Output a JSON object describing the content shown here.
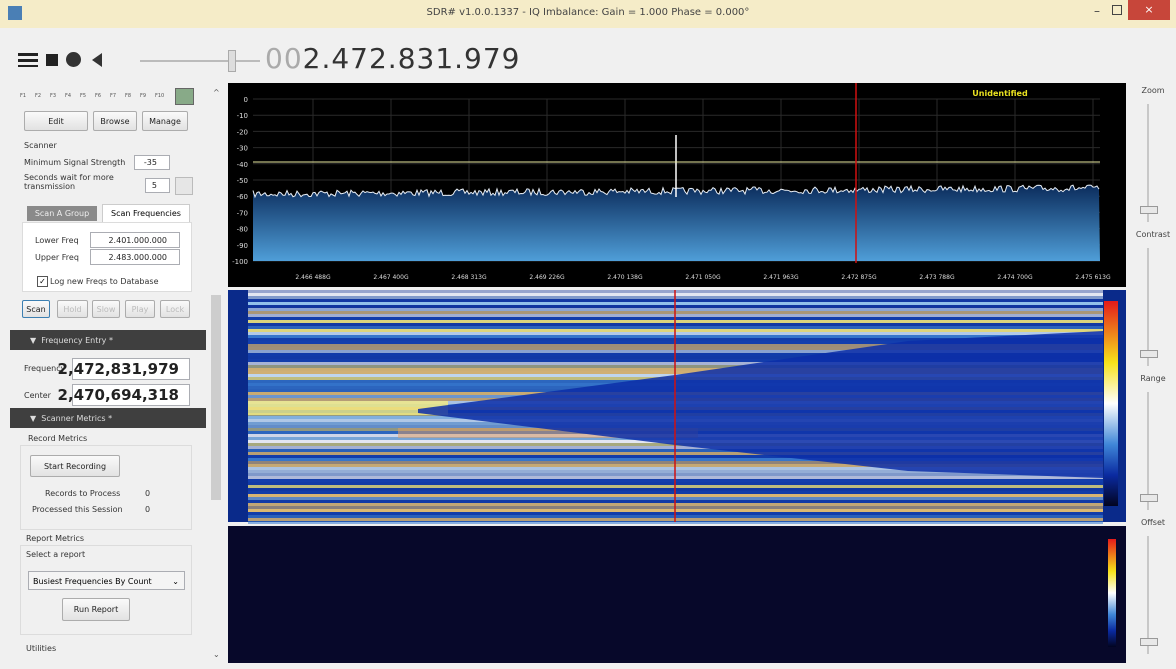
{
  "window": {
    "title": "SDR# v1.0.0.1337 - IQ Imbalance: Gain = 1.000 Phase = 0.000°"
  },
  "toolbar": {
    "frequency_prefix": "00",
    "frequency": "2.472.831.979"
  },
  "sidebar": {
    "favorites": [
      "F1",
      "F2",
      "F3",
      "F4",
      "F5",
      "F6",
      "F7",
      "F8",
      "F9",
      "F10"
    ],
    "buttons": [
      "Edit",
      "Browse",
      "Manage"
    ],
    "scanner": {
      "heading": "Scanner",
      "min_signal_label": "Minimum Signal Strength",
      "min_signal_value": "-35",
      "wait_label": "Seconds wait for more transmission",
      "wait_value": "5",
      "tabs": [
        "Scan A Group",
        "Scan Frequencies"
      ],
      "lower_label": "Lower Freq",
      "lower_value": "2.401.000.000",
      "upper_label": "Upper Freq",
      "upper_value": "2.483.000.000",
      "log_label": "Log new Freqs to Database",
      "controls": [
        "Scan",
        "Hold",
        "Slow",
        "Play",
        "Lock"
      ]
    },
    "frequency_entry": {
      "header": "Frequency Entry *",
      "frequency_label": "Frequency",
      "frequency_value": "2,472,831,979",
      "center_label": "Center",
      "center_value": "2,470,694,318"
    },
    "scanner_metrics": {
      "header": "Scanner Metrics *",
      "record_heading": "Record Metrics",
      "start_button": "Start Recording",
      "records_label": "Records to Process",
      "records_value": "0",
      "processed_label": "Processed this Session",
      "processed_value": "0",
      "report_heading": "Report Metrics",
      "select_label": "Select a report",
      "report_choice": "Busiest Frequencies By Count",
      "run_button": "Run Report",
      "utilities": "Utilities"
    }
  },
  "spectrum": {
    "status": "Unidentified",
    "y_labels": [
      "0",
      "-10",
      "-20",
      "-30",
      "-40",
      "-50",
      "-60",
      "-70",
      "-80",
      "-90",
      "-100"
    ],
    "x_labels": [
      "2.466 488G",
      "2.467 400G",
      "2.468 313G",
      "2.469 226G",
      "2.470 138G",
      "2.471 050G",
      "2.471 963G",
      "2.472 875G",
      "2.473 788G",
      "2.474 700G",
      "2.475 613G"
    ]
  },
  "side_controls": [
    "Zoom",
    "Contrast",
    "Range",
    "Offset"
  ]
}
